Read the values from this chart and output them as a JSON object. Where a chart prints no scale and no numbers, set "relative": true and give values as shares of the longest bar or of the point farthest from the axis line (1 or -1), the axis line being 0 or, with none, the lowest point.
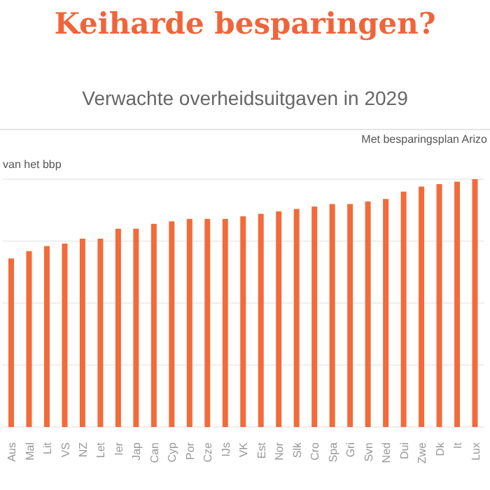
{
  "chart_data": {
    "type": "bar",
    "title": "Keiharde besparingen?",
    "subtitle": "Verwachte overheidsuitgaven in 2029",
    "ylabel": "van het bbp",
    "annotations": [
      "Met besparingsplan Arizo"
    ],
    "categories": [
      "Aus",
      "Mal",
      "Lit",
      "VS",
      "NZ",
      "Let",
      "Ier",
      "Jap",
      "Can",
      "Cyp",
      "Por",
      "Cze",
      "IJs",
      "VK",
      "Est",
      "Nor",
      "Slk",
      "Cro",
      "Spa",
      "Gri",
      "Svn",
      "Ned",
      "Dui",
      "Zwe",
      "Dk",
      "It",
      "Lux"
    ],
    "values": [
      0.68,
      0.71,
      0.73,
      0.74,
      0.76,
      0.76,
      0.8,
      0.8,
      0.82,
      0.83,
      0.84,
      0.84,
      0.84,
      0.85,
      0.86,
      0.87,
      0.88,
      0.89,
      0.9,
      0.9,
      0.91,
      0.92,
      0.95,
      0.97,
      0.98,
      0.99,
      1
    ],
    "color": "#f26b3a",
    "relative": true,
    "grid": "y"
  }
}
